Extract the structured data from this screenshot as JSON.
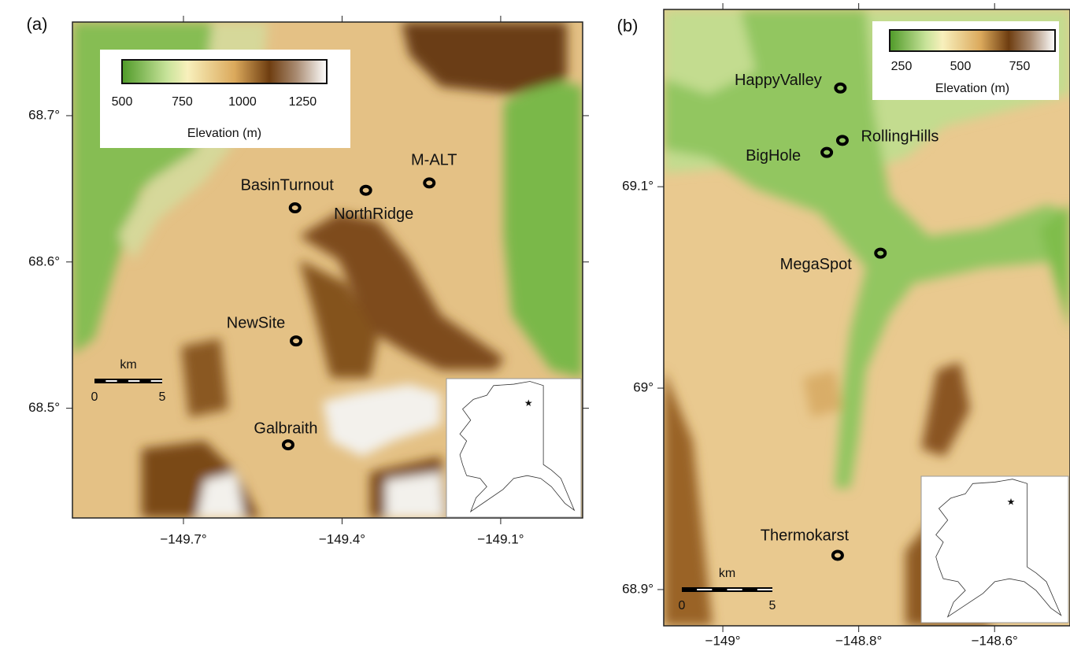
{
  "panels": [
    {
      "label": "(a)",
      "xlim": [
        -149.91,
        -148.945
      ],
      "ylim": [
        68.425,
        68.764
      ],
      "xticks": [
        {
          "value": -149.7,
          "label": "−149.7°"
        },
        {
          "value": -149.4,
          "label": "−149.4°"
        },
        {
          "value": -149.1,
          "label": "−149.1°"
        }
      ],
      "yticks": [
        {
          "value": 68.5,
          "label": "68.5°"
        },
        {
          "value": 68.6,
          "label": "68.6°"
        },
        {
          "value": 68.7,
          "label": "68.7°"
        }
      ],
      "colorbar": {
        "label": "Elevation (m)",
        "lim": [
          500,
          1350
        ],
        "ticks": [
          500,
          750,
          1000,
          1250
        ]
      },
      "scale_bar": {
        "label": "km",
        "ticks": [
          0,
          5
        ]
      },
      "sites": [
        {
          "name": "BasinTurnout",
          "lon": -149.489,
          "lat": 68.637
        },
        {
          "name": "NorthRidge",
          "lon": -149.355,
          "lat": 68.649
        },
        {
          "name": "M-ALT",
          "lon": -149.235,
          "lat": 68.654
        },
        {
          "name": "NewSite",
          "lon": -149.487,
          "lat": 68.546
        },
        {
          "name": "Galbraith",
          "lon": -149.502,
          "lat": 68.475
        }
      ]
    },
    {
      "label": "(b)",
      "xlim": [
        -149.087,
        -148.489
      ],
      "ylim": [
        68.882,
        69.188
      ],
      "xticks": [
        {
          "value": -149,
          "label": "−149°"
        },
        {
          "value": -148.8,
          "label": "−148.8°"
        },
        {
          "value": -148.6,
          "label": "−148.6°"
        }
      ],
      "yticks": [
        {
          "value": 68.9,
          "label": "68.9°"
        },
        {
          "value": 69,
          "label": "69°"
        },
        {
          "value": 69.1,
          "label": "69.1°"
        }
      ],
      "colorbar": {
        "label": "Elevation (m)",
        "lim": [
          200,
          900
        ],
        "ticks": [
          250,
          500,
          750
        ]
      },
      "scale_bar": {
        "label": "km",
        "ticks": [
          0,
          5
        ]
      },
      "sites": [
        {
          "name": "HappyValley",
          "lon": -148.827,
          "lat": 69.149
        },
        {
          "name": "RollingHills",
          "lon": -148.824,
          "lat": 69.123
        },
        {
          "name": "BigHole",
          "lon": -148.847,
          "lat": 69.117
        },
        {
          "name": "MegaSpot",
          "lon": -148.768,
          "lat": 69.067
        },
        {
          "name": "Thermokarst",
          "lon": -148.831,
          "lat": 68.917
        }
      ]
    }
  ]
}
